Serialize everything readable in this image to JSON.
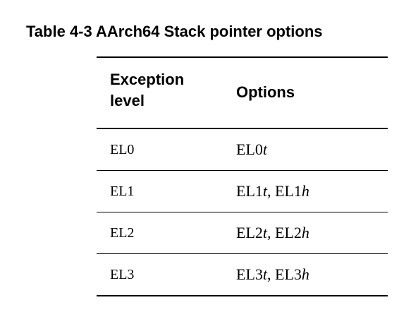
{
  "caption": "Table 4-3 AArch64 Stack pointer options",
  "table": {
    "headers": {
      "level": "Exception level",
      "options": "Options"
    },
    "rows": [
      {
        "level": "EL0",
        "options": [
          {
            "base": "EL0",
            "suffix": "t"
          }
        ]
      },
      {
        "level": "EL1",
        "options": [
          {
            "base": "EL1",
            "suffix": "t"
          },
          {
            "base": "EL1",
            "suffix": "h"
          }
        ]
      },
      {
        "level": "EL2",
        "options": [
          {
            "base": "EL2",
            "suffix": "t"
          },
          {
            "base": "EL2",
            "suffix": "h"
          }
        ]
      },
      {
        "level": "EL3",
        "options": [
          {
            "base": "EL3",
            "suffix": "t"
          },
          {
            "base": "EL3",
            "suffix": "h"
          }
        ]
      }
    ]
  }
}
